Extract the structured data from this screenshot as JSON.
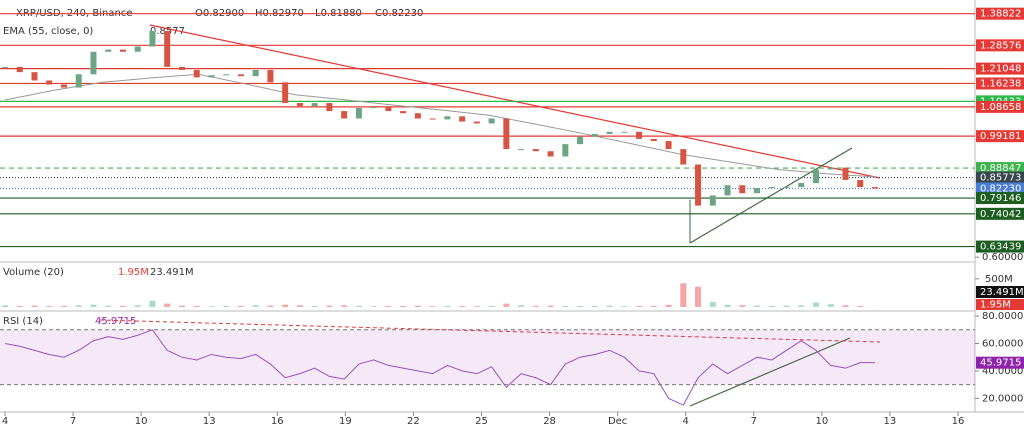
{
  "header": {
    "symbol": "XRP/USD, 240, Binance",
    "open": "O0.82900",
    "high": "H0.82970",
    "low": "L0.81880",
    "close": "C0.82230"
  },
  "ema": {
    "label": "EMA (55, close, 0)",
    "value": "0.8577",
    "values": [
      1.109,
      1.14,
      1.166,
      1.18,
      1.192,
      1.16,
      1.126,
      1.11,
      1.093,
      1.077,
      1.06,
      1.03,
      0.999,
      0.966,
      0.933,
      0.908,
      0.884,
      0.87,
      0.86
    ]
  },
  "price": {
    "ylim": [
      0.5845,
      1.4325
    ],
    "close": [
      1.216,
      1.199,
      1.172,
      1.159,
      1.149,
      1.192,
      1.265,
      1.272,
      1.265,
      1.282,
      1.332,
      1.216,
      1.206,
      1.182,
      1.189,
      1.192,
      1.186,
      1.206,
      1.166,
      1.099,
      1.089,
      1.099,
      1.073,
      1.049,
      1.083,
      1.086,
      1.073,
      1.066,
      1.049,
      1.046,
      1.056,
      1.039,
      1.033,
      1.049,
      0.95,
      0.95,
      0.943,
      0.926,
      0.966,
      0.99,
      0.999,
      1.006,
      1.006,
      0.983,
      0.976,
      0.95,
      0.9,
      0.767,
      0.8,
      0.833,
      0.807,
      0.824,
      0.827,
      0.827,
      0.84,
      0.884,
      0.89,
      0.85,
      0.827,
      0.8223
    ],
    "levels": [
      {
        "value": 1.38822,
        "label": "1.38822",
        "color": "#e53935",
        "style": "solid"
      },
      {
        "value": 1.28576,
        "label": "1.28576",
        "color": "#e53935",
        "style": "solid"
      },
      {
        "value": 1.21048,
        "label": "1.21048",
        "color": "#e53935",
        "style": "solid"
      },
      {
        "value": 1.16238,
        "label": "1.16238",
        "color": "#e53935",
        "style": "solid"
      },
      {
        "value": 1.10433,
        "label": "1.10433",
        "color": "#2fb84a",
        "style": "solid"
      },
      {
        "value": 1.08658,
        "label": "1.08658",
        "color": "#e53935",
        "style": "solid"
      },
      {
        "value": 0.99181,
        "label": "0.99181",
        "color": "#e53935",
        "style": "solid"
      },
      {
        "value": 0.88847,
        "label": "0.88847",
        "color": "#3cb44b",
        "style": "dash"
      },
      {
        "value": 0.85773,
        "label": "0.85773",
        "color": "#37474f",
        "style": "dot"
      },
      {
        "value": 0.8223,
        "label": "0.82230",
        "color": "#4a7dd6",
        "style": "dot"
      },
      {
        "value": 0.79146,
        "label": "0.79146",
        "color": "#1b5e20",
        "style": "solid"
      },
      {
        "value": 0.74042,
        "label": "0.74042",
        "color": "#1b5e20",
        "style": "solid"
      },
      {
        "value": 0.63439,
        "label": "0.63439",
        "color": "#1b5e20",
        "style": "solid"
      }
    ],
    "ticks": [
      {
        "value": 0.6,
        "label": "0.60000"
      }
    ]
  },
  "volume": {
    "label": "Volume (20)",
    "last": "1.95M",
    "ma": "23.491M",
    "ylim": [
      0,
      620000000
    ],
    "ticks": [
      {
        "value": 500000000,
        "label": "500M"
      }
    ],
    "values": [
      30000000,
      20000000,
      25000000,
      15000000,
      20000000,
      30000000,
      40000000,
      25000000,
      20000000,
      30000000,
      110000000,
      60000000,
      25000000,
      20000000,
      15000000,
      20000000,
      18000000,
      30000000,
      25000000,
      40000000,
      30000000,
      20000000,
      25000000,
      30000000,
      20000000,
      15000000,
      20000000,
      18000000,
      22000000,
      15000000,
      20000000,
      18000000,
      15000000,
      20000000,
      60000000,
      30000000,
      20000000,
      25000000,
      20000000,
      18000000,
      20000000,
      25000000,
      15000000,
      18000000,
      20000000,
      40000000,
      420000000,
      360000000,
      90000000,
      40000000,
      30000000,
      25000000,
      20000000,
      25000000,
      30000000,
      80000000,
      50000000,
      30000000,
      20000000,
      1950000
    ]
  },
  "rsi": {
    "label": "RSI (14)",
    "value": "45.9715",
    "ylim": [
      10,
      83
    ],
    "ticks": [
      {
        "value": 80,
        "label": "80.0000"
      },
      {
        "value": 60,
        "label": "60.0000"
      },
      {
        "value": 40,
        "label": "40.0000"
      },
      {
        "value": 20,
        "label": "20.0000"
      }
    ],
    "values": [
      60,
      58,
      55,
      52,
      50,
      55,
      62,
      65,
      63,
      66,
      70,
      55,
      50,
      48,
      52,
      50,
      49,
      52,
      45,
      35,
      38,
      42,
      36,
      34,
      45,
      48,
      44,
      42,
      40,
      38,
      44,
      40,
      38,
      43,
      28,
      38,
      35,
      30,
      45,
      50,
      52,
      55,
      50,
      40,
      38,
      20,
      15,
      35,
      45,
      38,
      44,
      50,
      48,
      55,
      62,
      55,
      44,
      42,
      46,
      46
    ]
  },
  "xaxis": [
    "4",
    "7",
    "10",
    "13",
    "16",
    "19",
    "22",
    "25",
    "28",
    "Dec",
    "4",
    "7",
    "10",
    "13",
    "16"
  ]
}
